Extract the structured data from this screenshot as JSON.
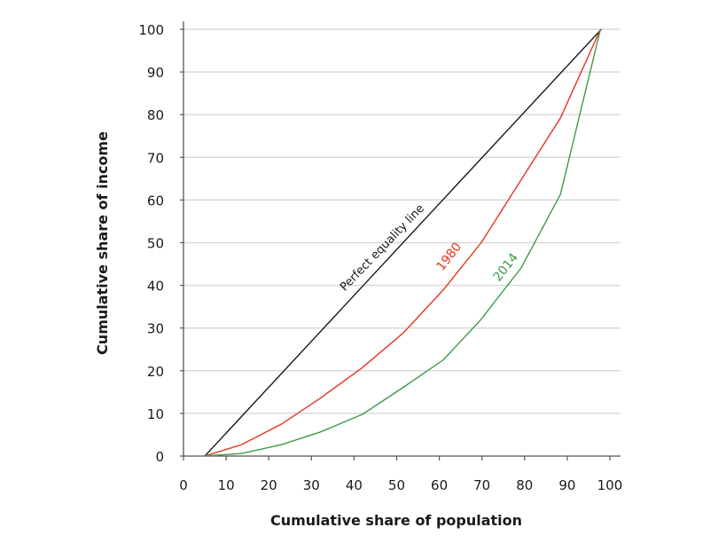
{
  "chart_data": {
    "type": "line",
    "title": "",
    "xlabel": "Cumulative share of population",
    "ylabel": "Cumulative share of income",
    "xlim": [
      0,
      100
    ],
    "ylim": [
      0,
      100
    ],
    "xticks": [
      0,
      10,
      20,
      30,
      40,
      50,
      60,
      70,
      80,
      90,
      100
    ],
    "yticks": [
      0,
      10,
      20,
      30,
      40,
      50,
      60,
      70,
      80,
      90,
      100
    ],
    "grid": "horizontal",
    "series": [
      {
        "name": "Perfect equality line",
        "color": "#1a1a1a",
        "x": [
          5,
          98
        ],
        "y": [
          0,
          100
        ]
      },
      {
        "name": "1980",
        "color": "#e8321e",
        "x": [
          5,
          13.7,
          23,
          32,
          41.8,
          51.6,
          60.9,
          69.9,
          78.6,
          88.4,
          97.8
        ],
        "y": [
          0,
          2.7,
          7.5,
          13.5,
          20.6,
          28.9,
          38.9,
          50.1,
          63.8,
          79.2,
          100
        ]
      },
      {
        "name": "2014",
        "color": "#3d9a4a",
        "x": [
          5,
          13.7,
          23,
          32,
          42,
          51.1,
          60.9,
          69.6,
          79.2,
          88.4,
          97.8
        ],
        "y": [
          0,
          0.6,
          2.7,
          5.6,
          9.8,
          15.8,
          22.5,
          31.8,
          44.1,
          61.3,
          100
        ]
      }
    ]
  }
}
